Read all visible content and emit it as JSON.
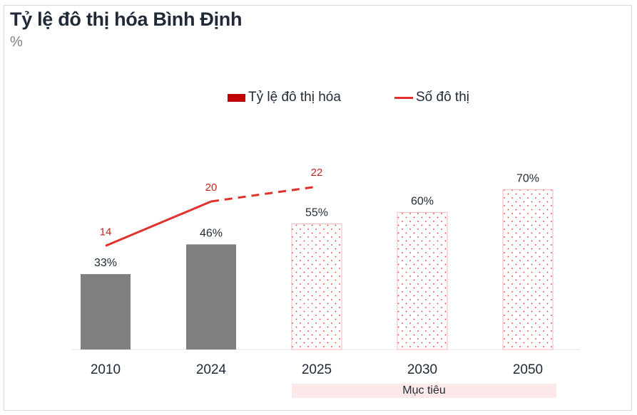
{
  "chart_data": {
    "type": "bar",
    "title": "Tỷ lệ đô thị hóa Bình Định",
    "unit_label": "%",
    "categories": [
      "2010",
      "2024",
      "2025",
      "2030",
      "2050"
    ],
    "series": [
      {
        "name": "Tỷ lệ đô thị hóa",
        "type": "bar",
        "values": [
          33,
          46,
          55,
          60,
          70
        ],
        "data_labels": [
          "33%",
          "46%",
          "55%",
          "60%",
          "70%"
        ],
        "styles": [
          "solid",
          "solid",
          "dotted",
          "dotted",
          "dotted"
        ]
      },
      {
        "name": "Số đô thị",
        "type": "line",
        "points": [
          {
            "category": "2010",
            "value": 14,
            "label": "14"
          },
          {
            "category": "2024",
            "value": 20,
            "label": "20"
          },
          {
            "category": "2025",
            "value": 22,
            "label": "22"
          }
        ],
        "dashed_from": "2024"
      }
    ],
    "annotation": {
      "text": "Mục tiêu",
      "categories": [
        "2025",
        "2030",
        "2050"
      ]
    },
    "legend_position": "top-center",
    "ylim": [
      0,
      80
    ],
    "grid": false
  },
  "colors": {
    "bar_solid": "#7f7f7f",
    "bar_dot": "#e0322d",
    "bar_dot_border": "#f2b8b8",
    "line": "#e0322d",
    "line_label": "#c0281f",
    "text": "#1f2a36",
    "band": "#fde9e9"
  }
}
